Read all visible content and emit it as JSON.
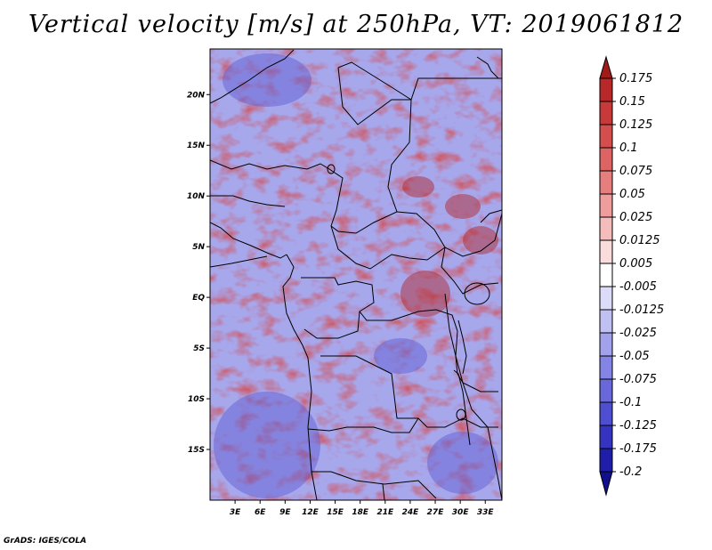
{
  "title": "Vertical velocity [m/s] at 250hPa, VT: 2019061812",
  "credit": "GrADS: IGES/COLA",
  "map": {
    "lon_range": [
      0,
      35
    ],
    "lat_range": [
      -20,
      24.5
    ],
    "lat_ticks": [
      {
        "value": 20,
        "label": "20N"
      },
      {
        "value": 15,
        "label": "15N"
      },
      {
        "value": 10,
        "label": "10N"
      },
      {
        "value": 5,
        "label": "5N"
      },
      {
        "value": 0,
        "label": "EQ"
      },
      {
        "value": -5,
        "label": "5S"
      },
      {
        "value": -10,
        "label": "10S"
      },
      {
        "value": -15,
        "label": "15S"
      }
    ],
    "lon_ticks": [
      {
        "value": 3,
        "label": "3E"
      },
      {
        "value": 6,
        "label": "6E"
      },
      {
        "value": 9,
        "label": "9E"
      },
      {
        "value": 12,
        "label": "12E"
      },
      {
        "value": 15,
        "label": "15E"
      },
      {
        "value": 18,
        "label": "18E"
      },
      {
        "value": 21,
        "label": "21E"
      },
      {
        "value": 24,
        "label": "24E"
      },
      {
        "value": 27,
        "label": "27E"
      },
      {
        "value": 30,
        "label": "30E"
      },
      {
        "value": 33,
        "label": "33E"
      }
    ]
  },
  "colorbar": {
    "labels": [
      "0.175",
      "0.15",
      "0.125",
      "0.1",
      "0.075",
      "0.05",
      "0.025",
      "0.0125",
      "0.005",
      "-0.005",
      "-0.0125",
      "-0.025",
      "-0.05",
      "-0.075",
      "-0.1",
      "-0.125",
      "-0.175",
      "-0.2"
    ],
    "colors": [
      "#a01a1a",
      "#b82828",
      "#c83a3a",
      "#d44e4e",
      "#de6464",
      "#e67e7e",
      "#ee9c9c",
      "#f5bcbc",
      "#fadcdc",
      "#ffffff",
      "#dcdcf8",
      "#c0c0f2",
      "#a2a2ec",
      "#8484e4",
      "#6868da",
      "#4e4ed0",
      "#3434c0",
      "#1e1ea8",
      "#10108c"
    ]
  }
}
